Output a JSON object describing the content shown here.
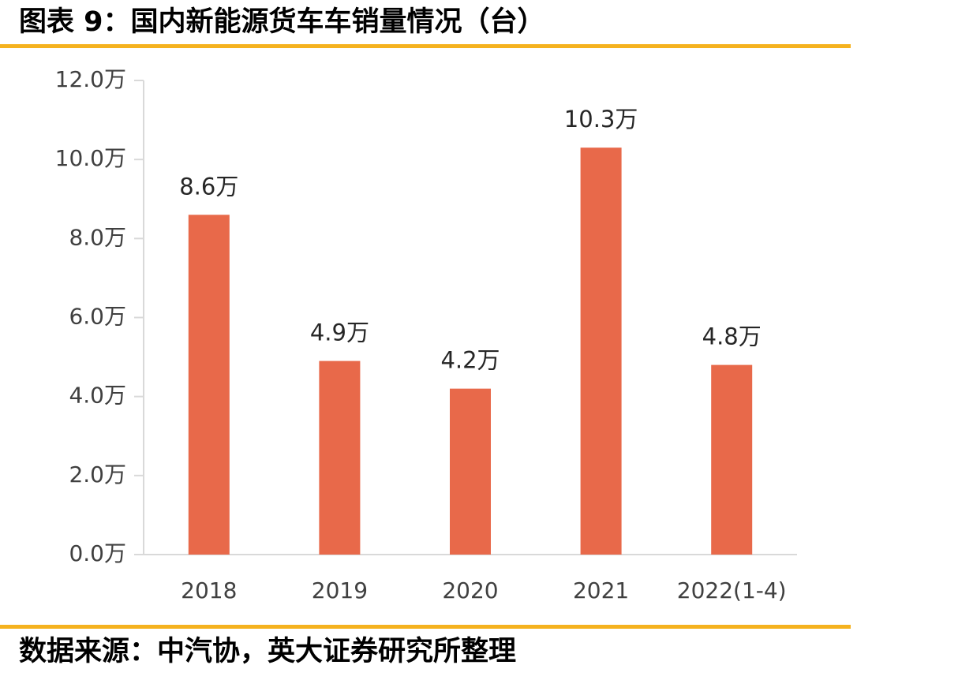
{
  "figure": {
    "title": "图表 9：国内新能源货车车销量情况（台）",
    "source": "数据来源：中汽协，英大证券研究所整理",
    "rule_color": "#F5B21E"
  },
  "chart_data": {
    "type": "bar",
    "title": "",
    "xlabel": "",
    "ylabel": "",
    "categories": [
      "2018",
      "2019",
      "2020",
      "2021",
      "2022(1-4)"
    ],
    "values": [
      8.6,
      4.9,
      4.2,
      10.3,
      4.8
    ],
    "data_labels": [
      "8.6万",
      "4.9万",
      "4.2万",
      "10.3万",
      "4.8万"
    ],
    "ylim": [
      0,
      12
    ],
    "y_ticks": [
      0,
      2,
      4,
      6,
      8,
      10,
      12
    ],
    "y_tick_labels": [
      "0.0万",
      "2.0万",
      "4.0万",
      "6.0万",
      "8.0万",
      "10.0万",
      "12.0万"
    ],
    "bar_color": "#E8694A",
    "axis_color": "#D9D9D9",
    "grid": false,
    "legend": "none"
  }
}
